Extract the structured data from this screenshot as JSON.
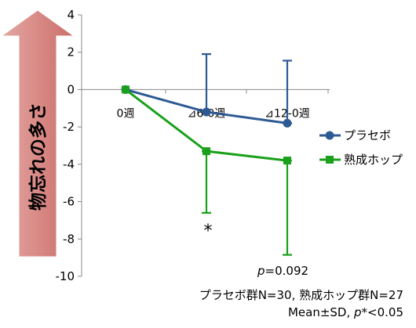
{
  "chart_data": {
    "type": "line",
    "ylabel": "物忘れの多さ",
    "ylim": [
      -10,
      4
    ],
    "ytick_step": 2,
    "ytick_labels": [
      "4",
      "2",
      "0",
      "-2",
      "-4",
      "-6",
      "-8",
      "-10"
    ],
    "categories": [
      "0週",
      "⊿6-0週",
      "⊿12-0週"
    ],
    "grid": false,
    "legend_position": "right",
    "series": [
      {
        "name": "プラセボ",
        "color": "#2e5a94",
        "marker": "circle",
        "values": [
          0,
          -1.2,
          -1.8
        ],
        "error_upper": [
          0,
          1.9,
          1.55
        ],
        "error_lower": [
          0,
          -1.2,
          -1.8
        ]
      },
      {
        "name": "熟成ホップ",
        "color": "#1aa01a",
        "marker": "square",
        "values": [
          0,
          -3.3,
          -3.8
        ],
        "error_upper": [
          0,
          -3.3,
          -3.8
        ],
        "error_lower": [
          0,
          -6.6,
          -8.85
        ]
      }
    ],
    "annotations": {
      "significance_marker": "*",
      "p_value": {
        "prefix": "p",
        "value": "=0.092"
      },
      "group_sizes": "プラセボ群N=30, 熟成ホップ群N=27",
      "stats_prefix": "Mean±SD, ",
      "stats_p": "p",
      "stats_suffix": "*<0.05"
    }
  }
}
